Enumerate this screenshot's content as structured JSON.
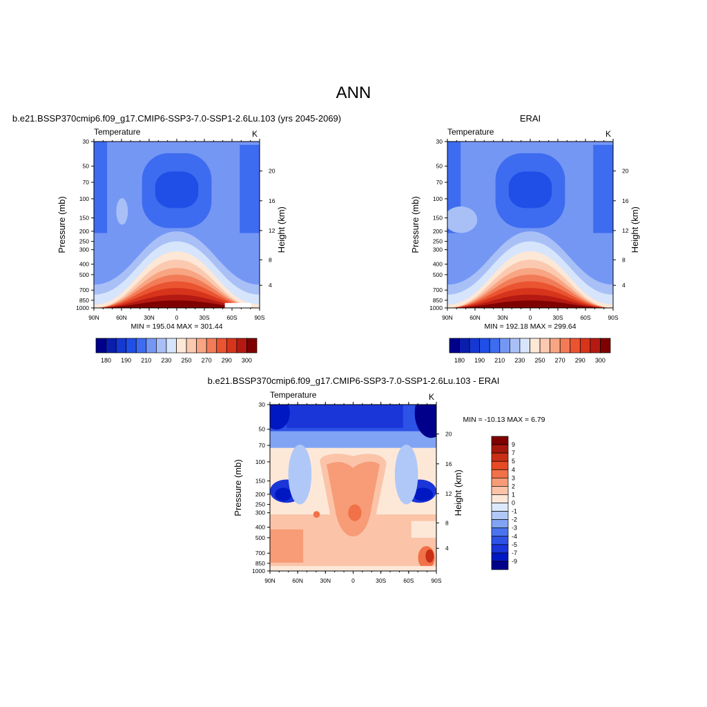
{
  "figure": {
    "title": "ANN"
  },
  "colors": {
    "temperature_palette": [
      "#00008b",
      "#0a1eae",
      "#1438d1",
      "#1f4fe6",
      "#3e6cf0",
      "#7597f4",
      "#a9c0f7",
      "#d6e5fb",
      "#fde7d6",
      "#fbc9b0",
      "#f8a583",
      "#f27c58",
      "#ea5431",
      "#d7341c",
      "#b51a12",
      "#7f0000"
    ],
    "difference_palette": [
      "#00008b",
      "#0018c2",
      "#1a35d8",
      "#2d52e6",
      "#4a74ee",
      "#80a3f4",
      "#b0c8f8",
      "#dce9fc",
      "#fde8d8",
      "#fbc4a8",
      "#f79c77",
      "#f17148",
      "#e84a26",
      "#c92f16",
      "#a5180d",
      "#7f0000"
    ]
  },
  "chart_data": [
    {
      "type": "heatmap",
      "panel_title": "b.e21.BSSP370cmip6.f09_g17.CMIP6-SSP3-7.0-SSP1-2.6Lu.103 (yrs 2045-2069)",
      "variable": "Temperature",
      "units": "K",
      "ylabel": "Pressure (mb)",
      "ylabel_right": "Height (km)",
      "x_ticks": [
        "90N",
        "60N",
        "30N",
        "0",
        "30S",
        "60S",
        "90S"
      ],
      "y_ticks": [
        "30",
        "50",
        "70",
        "100",
        "150",
        "200",
        "250",
        "300",
        "400",
        "500",
        "700",
        "850",
        "1000"
      ],
      "height_ticks": [
        "20",
        "16",
        "12",
        "8",
        "4"
      ],
      "stats": "MIN = 195.04  MAX = 301.44",
      "min": 195.04,
      "max": 301.44,
      "colorbar_labels": [
        "180",
        "190",
        "210",
        "230",
        "250",
        "270",
        "290",
        "300"
      ]
    },
    {
      "type": "heatmap",
      "panel_title": "ERAI",
      "variable": "Temperature",
      "units": "K",
      "ylabel": "Pressure (mb)",
      "ylabel_right": "Height (km)",
      "x_ticks": [
        "90N",
        "60N",
        "30N",
        "0",
        "30S",
        "60S",
        "90S"
      ],
      "y_ticks": [
        "30",
        "50",
        "70",
        "100",
        "150",
        "200",
        "250",
        "300",
        "400",
        "500",
        "700",
        "850",
        "1000"
      ],
      "height_ticks": [
        "20",
        "16",
        "12",
        "8",
        "4"
      ],
      "stats": "MIN = 192.18  MAX = 299.64",
      "min": 192.18,
      "max": 299.64,
      "colorbar_labels": [
        "180",
        "190",
        "210",
        "230",
        "250",
        "270",
        "290",
        "300"
      ]
    },
    {
      "type": "heatmap",
      "panel_title": "b.e21.BSSP370cmip6.f09_g17.CMIP6-SSP3-7.0-SSP1-2.6Lu.103 - ERAI",
      "variable": "Temperature",
      "units": "K",
      "ylabel": "Pressure (mb)",
      "ylabel_right": "Height (km)",
      "x_ticks": [
        "90N",
        "60N",
        "30N",
        "0",
        "30S",
        "60S",
        "90S"
      ],
      "y_ticks": [
        "30",
        "50",
        "70",
        "100",
        "150",
        "200",
        "250",
        "300",
        "400",
        "500",
        "700",
        "850",
        "1000"
      ],
      "height_ticks": [
        "20",
        "16",
        "12",
        "8",
        "4"
      ],
      "stats": "MIN = -10.13  MAX =   6.79",
      "min": -10.13,
      "max": 6.79,
      "colorbar_labels": [
        "9",
        "7",
        "5",
        "4",
        "3",
        "2",
        "1",
        "0",
        "-1",
        "-2",
        "-3",
        "-4",
        "-5",
        "-7",
        "-9"
      ]
    }
  ]
}
